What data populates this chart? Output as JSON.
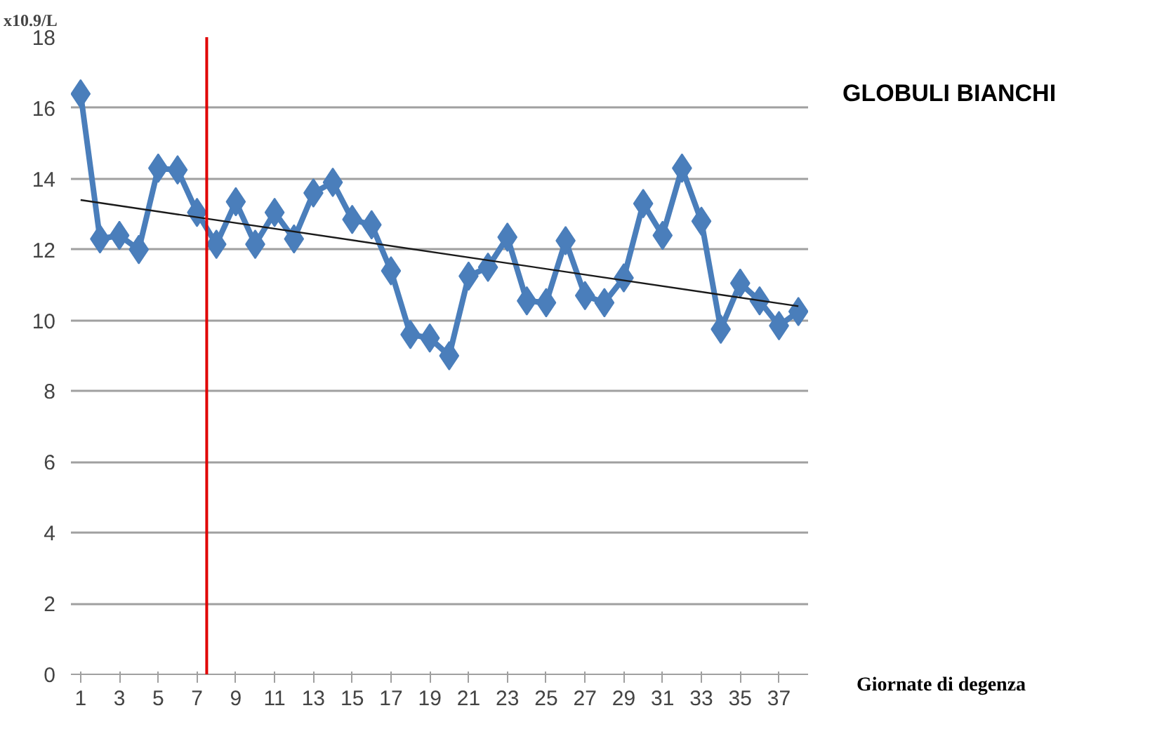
{
  "chart_data": {
    "type": "line",
    "title": "GLOBULI BIANCHI",
    "xlabel": "Giornate di degenza",
    "ylabel": "x10.9/L",
    "x": [
      1,
      2,
      3,
      4,
      5,
      6,
      7,
      8,
      9,
      10,
      11,
      12,
      13,
      14,
      15,
      16,
      17,
      18,
      19,
      20,
      21,
      22,
      23,
      24,
      25,
      26,
      27,
      28,
      29,
      30,
      31,
      32,
      33,
      34,
      35,
      36,
      37,
      38
    ],
    "series": [
      {
        "color": "#4a7ebb",
        "marker": "diamond",
        "values": [
          16.4,
          12.3,
          12.4,
          12.0,
          14.3,
          14.25,
          13.05,
          12.15,
          13.35,
          12.15,
          13.05,
          12.3,
          13.6,
          13.9,
          12.85,
          12.7,
          11.4,
          9.6,
          9.5,
          9.0,
          11.25,
          11.5,
          12.35,
          10.55,
          10.5,
          12.25,
          10.7,
          10.5,
          11.2,
          13.3,
          12.4,
          14.3,
          12.8,
          9.75,
          11.05,
          10.55,
          9.85,
          10.25
        ]
      },
      {
        "type": "line",
        "color": "#1a1a1a",
        "marker": "none",
        "x": [
          1,
          38
        ],
        "values": [
          13.4,
          10.4
        ]
      }
    ],
    "xlim": [
      0.5,
      38.5
    ],
    "xticks": [
      1,
      3,
      5,
      7,
      9,
      11,
      13,
      15,
      17,
      19,
      21,
      23,
      25,
      27,
      29,
      31,
      33,
      35,
      37
    ],
    "ylim": [
      0,
      18
    ],
    "yticks": [
      0,
      2,
      4,
      6,
      8,
      10,
      12,
      14,
      16,
      18
    ],
    "grid": "y",
    "ref_lines": [
      {
        "axis": "x",
        "value": 7.5,
        "color": "#e00000"
      }
    ]
  }
}
